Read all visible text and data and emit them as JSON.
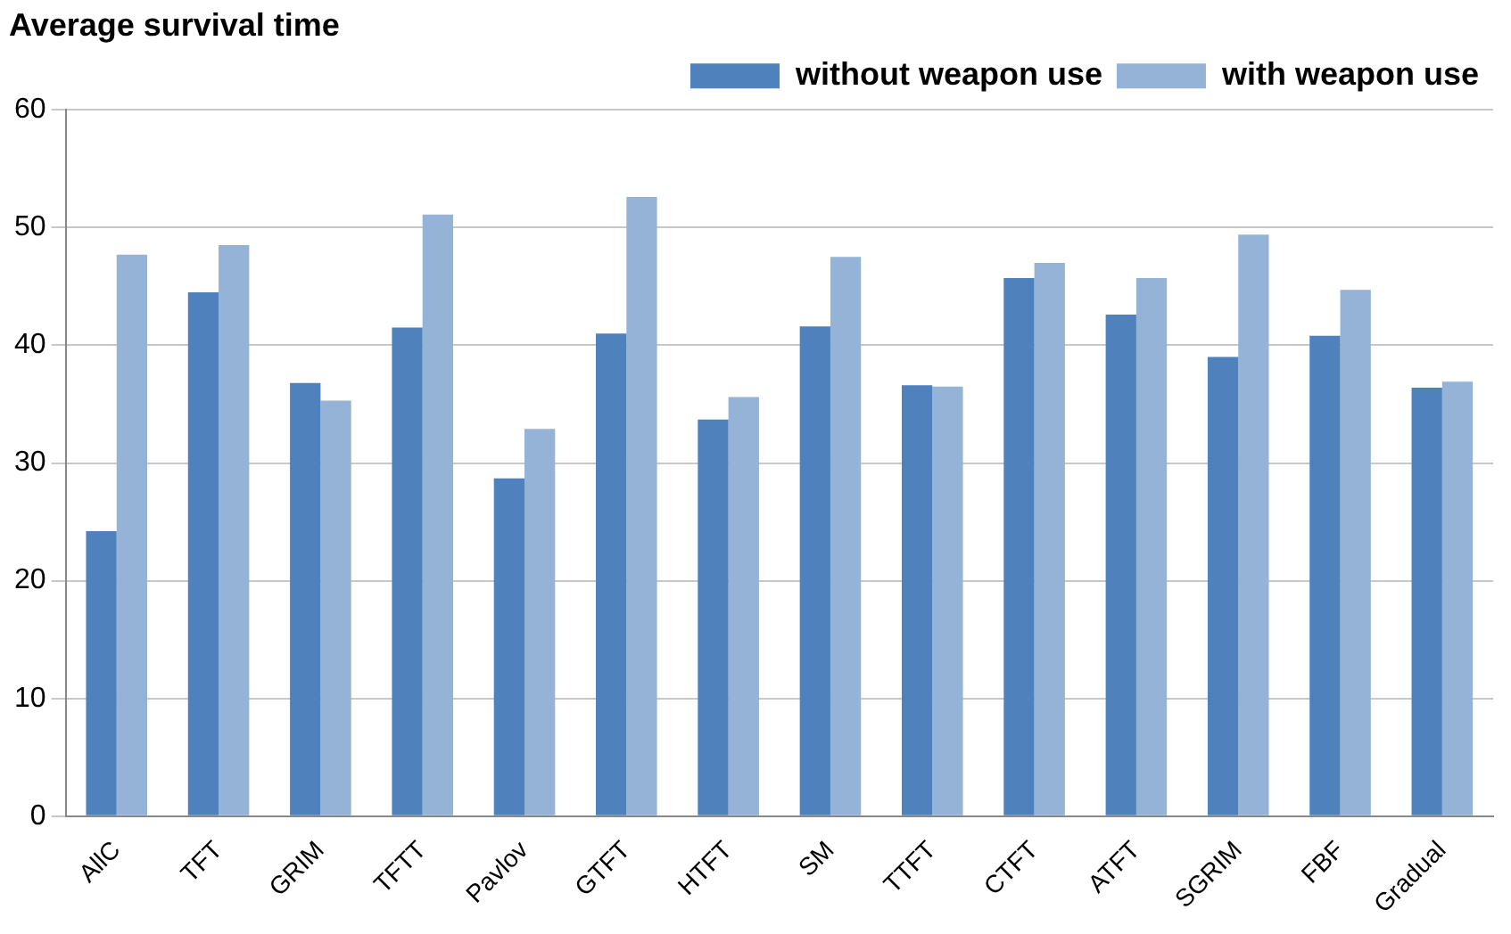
{
  "chart_data": {
    "type": "bar",
    "title": "Average survival time",
    "categories": [
      "AllC",
      "TFT",
      "GRIM",
      "TFTT",
      "Pavlov",
      "GTFT",
      "HTFT",
      "SM",
      "TTFT",
      "CTFT",
      "ATFT",
      "SGRIM",
      "FBF",
      "Gradual"
    ],
    "series": [
      {
        "name": "without weapon use",
        "color": "#4f81bd",
        "values": [
          24.2,
          44.5,
          36.8,
          41.5,
          28.7,
          41.0,
          33.7,
          41.6,
          36.6,
          45.7,
          42.6,
          39.0,
          40.8,
          36.4
        ]
      },
      {
        "name": "with weapon use",
        "color": "#95b3d7",
        "values": [
          47.7,
          48.5,
          35.3,
          51.1,
          32.9,
          52.6,
          35.6,
          47.5,
          36.5,
          47.0,
          45.7,
          49.4,
          44.7,
          36.9
        ]
      }
    ],
    "ylim": [
      0,
      60
    ],
    "yticks": [
      0,
      10,
      20,
      30,
      40,
      50,
      60
    ],
    "grid": "y",
    "legend": "top right"
  }
}
